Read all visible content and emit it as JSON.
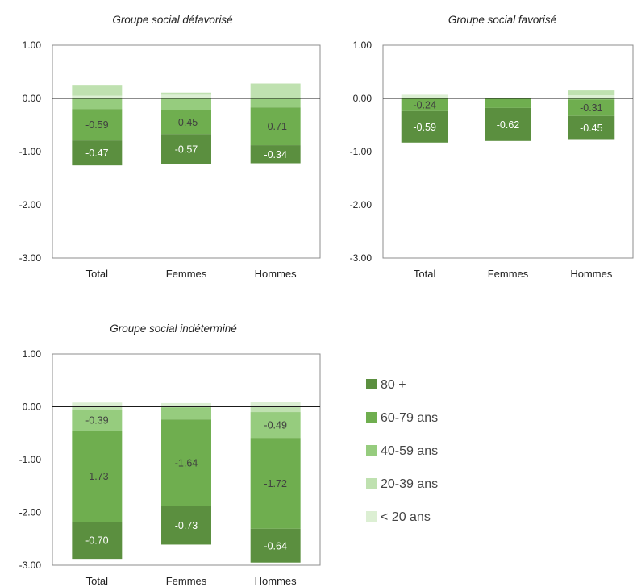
{
  "legend": {
    "items": [
      {
        "label": "80 +",
        "color": "#5b8f3f"
      },
      {
        "label": "60-79 ans",
        "color": "#6fae4f"
      },
      {
        "label": "40-59 ans",
        "color": "#96cc7e"
      },
      {
        "label": "20-39 ans",
        "color": "#bfe1b0"
      },
      {
        "label": "< 20 ans",
        "color": "#dcefd3"
      }
    ]
  },
  "chart_data": [
    {
      "type": "bar",
      "stacked": true,
      "title": "Groupe social défavorisé",
      "xlabel": "",
      "ylabel": "",
      "ylim": [
        -3,
        1
      ],
      "yticks": [
        "1.00",
        "0.00",
        "-1.00",
        "-2.00",
        "-3.00"
      ],
      "categories": [
        "Total",
        "Femmes",
        "Hommes"
      ],
      "series": [
        {
          "name": "< 20 ans",
          "values": [
            0.05,
            0.07,
            0.0
          ],
          "labels": [
            "",
            "",
            ""
          ]
        },
        {
          "name": "20-39 ans",
          "values": [
            0.19,
            0.04,
            0.28
          ],
          "labels": [
            "",
            "",
            ""
          ]
        },
        {
          "name": "40-59 ans",
          "values": [
            -0.2,
            -0.22,
            -0.17
          ],
          "labels": [
            "",
            "",
            ""
          ]
        },
        {
          "name": "60-79 ans",
          "values": [
            -0.59,
            -0.45,
            -0.71
          ],
          "labels": [
            "-0.59",
            "-0.45",
            "-0.71"
          ]
        },
        {
          "name": "80 +",
          "values": [
            -0.47,
            -0.57,
            -0.34
          ],
          "labels": [
            "-0.47",
            "-0.57",
            "-0.34"
          ]
        }
      ]
    },
    {
      "type": "bar",
      "stacked": true,
      "title": "Groupe social favorisé",
      "xlabel": "",
      "ylabel": "",
      "ylim": [
        -3,
        1
      ],
      "yticks": [
        "1.00",
        "0.00",
        "-1.00",
        "-2.00",
        "-3.00"
      ],
      "categories": [
        "Total",
        "Femmes",
        "Hommes"
      ],
      "series": [
        {
          "name": "< 20 ans",
          "values": [
            0.07,
            0.0,
            0.06
          ],
          "labels": [
            "",
            "",
            ""
          ]
        },
        {
          "name": "20-39 ans",
          "values": [
            0.0,
            0.0,
            0.09
          ],
          "labels": [
            "",
            "",
            ""
          ]
        },
        {
          "name": "40-59 ans",
          "values": [
            0.0,
            0.0,
            -0.02
          ],
          "labels": [
            "",
            "",
            ""
          ]
        },
        {
          "name": "60-79 ans",
          "values": [
            -0.24,
            -0.18,
            -0.31
          ],
          "labels": [
            "-0.24",
            "",
            "-0.31"
          ]
        },
        {
          "name": "80 +",
          "values": [
            -0.59,
            -0.62,
            -0.45
          ],
          "labels": [
            "-0.59",
            "-0.62",
            "-0.45"
          ]
        }
      ]
    },
    {
      "type": "bar",
      "stacked": true,
      "title": "Groupe social indéterminé",
      "xlabel": "",
      "ylabel": "",
      "ylim": [
        -3,
        1
      ],
      "yticks": [
        "1.00",
        "0.00",
        "-1.00",
        "-2.00",
        "-3.00"
      ],
      "categories": [
        "Total",
        "Femmes",
        "Hommes"
      ],
      "series": [
        {
          "name": "< 20 ans",
          "values": [
            0.08,
            0.07,
            0.09
          ],
          "labels": [
            "",
            "",
            ""
          ]
        },
        {
          "name": "20-39 ans",
          "values": [
            -0.06,
            -0.01,
            -0.1
          ],
          "labels": [
            "",
            "",
            ""
          ]
        },
        {
          "name": "40-59 ans",
          "values": [
            -0.39,
            -0.23,
            -0.49
          ],
          "labels": [
            "-0.39",
            "",
            "-0.49"
          ]
        },
        {
          "name": "60-79 ans",
          "values": [
            -1.73,
            -1.64,
            -1.72
          ],
          "labels": [
            "-1.73",
            "-1.64",
            "-1.72"
          ]
        },
        {
          "name": "80 +",
          "values": [
            -0.7,
            -0.73,
            -0.64
          ],
          "labels": [
            "-0.70",
            "-0.73",
            "-0.64"
          ]
        }
      ]
    }
  ]
}
